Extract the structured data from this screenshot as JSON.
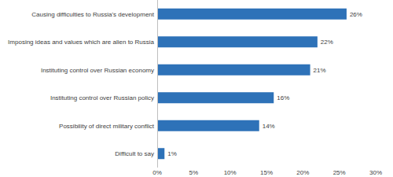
{
  "chart_data": {
    "type": "bar",
    "orientation": "horizontal",
    "categories": [
      "Causing difficulties to Russia's development",
      "Imposing ideas and values which are alien to Russia",
      "Instituting control over Russian economy",
      "Instituting control over Russian policy",
      "Possibility of direct military conflict",
      "Difficult to say"
    ],
    "values": [
      26,
      22,
      21,
      16,
      14,
      1
    ],
    "value_labels": [
      "26%",
      "22%",
      "21%",
      "16%",
      "14%",
      "1%"
    ],
    "data_labels": true,
    "color": "#2e72b8",
    "xlim": [
      0,
      30
    ],
    "xticks": [
      {
        "value": 0,
        "label": "0%"
      },
      {
        "value": 5,
        "label": "5%"
      },
      {
        "value": 10,
        "label": "10%"
      },
      {
        "value": 15,
        "label": "15%"
      },
      {
        "value": 20,
        "label": "20%"
      },
      {
        "value": 25,
        "label": "25%"
      },
      {
        "value": 30,
        "label": "30%"
      }
    ],
    "grid": false
  }
}
